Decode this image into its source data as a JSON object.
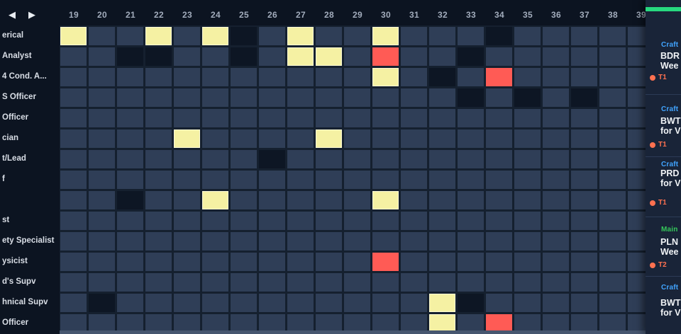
{
  "header": {
    "nav": {
      "prev_label": "◀",
      "next_label": "▶"
    },
    "weeks": [
      "19",
      "20",
      "21",
      "22",
      "23",
      "24",
      "25",
      "26",
      "27",
      "28",
      "29",
      "30",
      "31",
      "32",
      "33",
      "34",
      "35",
      "36",
      "37",
      "38",
      "39"
    ]
  },
  "sidebar": {
    "rows": [
      "erical",
      "Analyst",
      "4 Cond. A...",
      "S Officer",
      "Officer",
      "cian",
      "t/Lead",
      "f",
      "",
      "st",
      "ety Specialist",
      "ysicist",
      "d's Supv",
      "hnical Supv",
      "Officer"
    ]
  },
  "grid": {
    "first_week": 19,
    "cells": [
      {
        "row": 0,
        "week": 19,
        "status": "scheduled"
      },
      {
        "row": 0,
        "week": 22,
        "status": "scheduled"
      },
      {
        "row": 0,
        "week": 24,
        "status": "scheduled"
      },
      {
        "row": 0,
        "week": 25,
        "status": "closed"
      },
      {
        "row": 0,
        "week": 27,
        "status": "scheduled"
      },
      {
        "row": 0,
        "week": 30,
        "status": "scheduled"
      },
      {
        "row": 0,
        "week": 34,
        "status": "closed"
      },
      {
        "row": 1,
        "week": 21,
        "status": "closed"
      },
      {
        "row": 1,
        "week": 22,
        "status": "closed"
      },
      {
        "row": 1,
        "week": 25,
        "status": "closed"
      },
      {
        "row": 1,
        "week": 27,
        "status": "scheduled"
      },
      {
        "row": 1,
        "week": 28,
        "status": "scheduled"
      },
      {
        "row": 1,
        "week": 30,
        "status": "overallocated"
      },
      {
        "row": 1,
        "week": 33,
        "status": "closed"
      },
      {
        "row": 2,
        "week": 30,
        "status": "scheduled"
      },
      {
        "row": 2,
        "week": 32,
        "status": "closed"
      },
      {
        "row": 2,
        "week": 34,
        "status": "overallocated"
      },
      {
        "row": 3,
        "week": 33,
        "status": "closed"
      },
      {
        "row": 3,
        "week": 35,
        "status": "closed"
      },
      {
        "row": 3,
        "week": 37,
        "status": "closed"
      },
      {
        "row": 5,
        "week": 23,
        "status": "scheduled"
      },
      {
        "row": 5,
        "week": 28,
        "status": "scheduled"
      },
      {
        "row": 6,
        "week": 26,
        "status": "closed"
      },
      {
        "row": 8,
        "week": 21,
        "status": "closed"
      },
      {
        "row": 8,
        "week": 24,
        "status": "scheduled"
      },
      {
        "row": 8,
        "week": 30,
        "status": "scheduled"
      },
      {
        "row": 11,
        "week": 30,
        "status": "overallocated"
      },
      {
        "row": 13,
        "week": 20,
        "status": "closed"
      },
      {
        "row": 13,
        "week": 32,
        "status": "scheduled"
      },
      {
        "row": 13,
        "week": 33,
        "status": "closed"
      },
      {
        "row": 14,
        "week": 32,
        "status": "scheduled"
      },
      {
        "row": 14,
        "week": 34,
        "status": "overallocated"
      }
    ]
  },
  "panel": {
    "cards": [
      {
        "category": "Craft",
        "category_color": "blue",
        "title_line1": "BDR",
        "title_line2": "Wee",
        "tag": "T1",
        "green_bar": true
      },
      {
        "category": "Craft",
        "category_color": "blue",
        "title_line1": "BWT",
        "title_line2": "for V",
        "tag": "T1",
        "green_bar": false
      },
      {
        "category": "Craft",
        "category_color": "blue",
        "title_line1": "PRD",
        "title_line2": "for V",
        "tag": "T1",
        "green_bar": false
      },
      {
        "category": "Main",
        "category_color": "green",
        "title_line1": "PLN",
        "title_line2": "Wee",
        "tag": "T2",
        "green_bar": false
      },
      {
        "category": "Craft",
        "category_color": "blue",
        "title_line1": "BWT",
        "title_line2": "for V",
        "tag": "",
        "green_bar": false
      }
    ]
  },
  "colors": {
    "background": "#0c1421",
    "grid_gap": "#15202f",
    "cell_default": "#2f3e57",
    "cell_closed": "#0d1624",
    "cell_scheduled": "#f5f1a3",
    "cell_conflict": "#ff5b55",
    "accent_green": "#27d980",
    "category_blue": "#41a4ff",
    "category_green": "#35c75a",
    "tag_orange": "#ff7150"
  }
}
